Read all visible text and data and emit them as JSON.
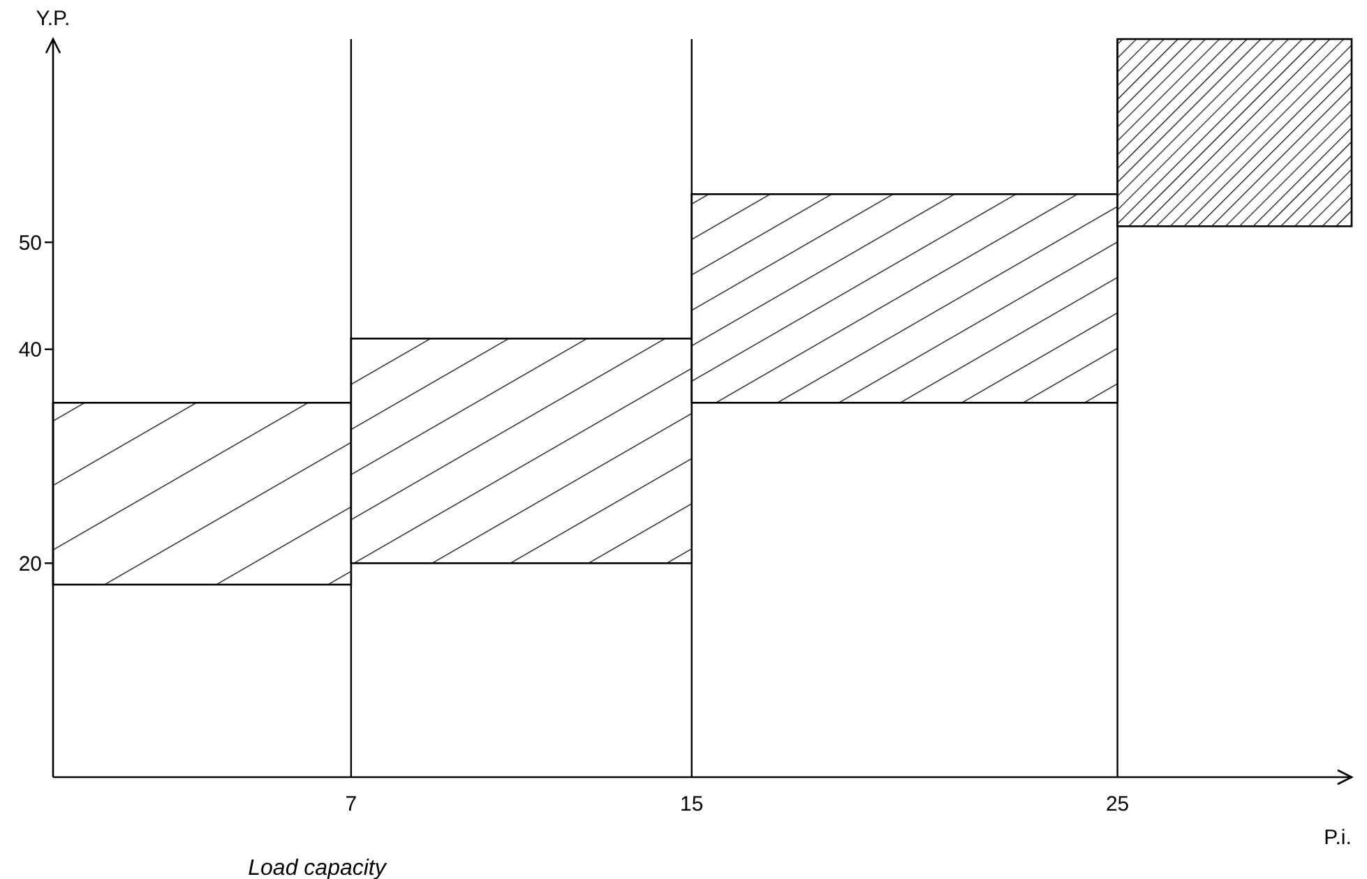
{
  "chart_data": {
    "type": "histogram",
    "xlabel": "P.i.",
    "ylabel": "Y.P.",
    "bins": [
      0,
      7,
      15,
      25,
      30.5
    ],
    "base": [
      18,
      20,
      35,
      51.5
    ],
    "values": [
      17,
      21,
      19.5,
      17.5
    ],
    "color": "#000000",
    "xlim": [
      0,
      30.5
    ],
    "xticks": [
      7,
      15,
      25
    ],
    "ylim": [
      0,
      69
    ],
    "yticks": [
      20,
      40,
      50
    ],
    "ref_lines": [
      {
        "axis": "x",
        "value": 7
      },
      {
        "axis": "x",
        "value": 15
      },
      {
        "axis": "x",
        "value": 25
      }
    ],
    "annotations": [
      "Load capacity"
    ],
    "grid": false
  }
}
